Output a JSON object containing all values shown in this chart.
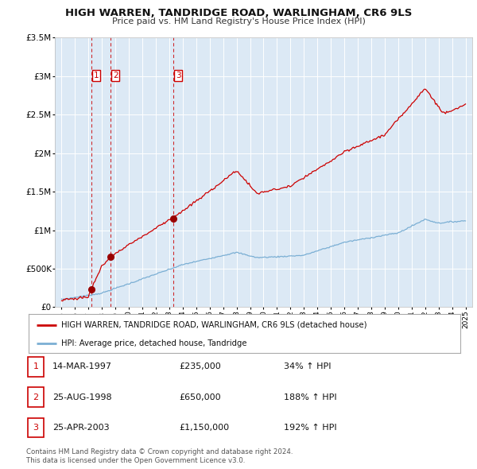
{
  "title": "HIGH WARREN, TANDRIDGE ROAD, WARLINGHAM, CR6 9LS",
  "subtitle": "Price paid vs. HM Land Registry's House Price Index (HPI)",
  "legend_line1": "HIGH WARREN, TANDRIDGE ROAD, WARLINGHAM, CR6 9LS (detached house)",
  "legend_line2": "HPI: Average price, detached house, Tandridge",
  "sale_line_color": "#cc0000",
  "hpi_line_color": "#7bafd4",
  "sale_dot_color": "#990000",
  "background_plot": "#dce9f5",
  "background_fig": "#ffffff",
  "grid_color": "#ffffff",
  "vline_color": "#cc0000",
  "ylim": [
    0,
    3500000
  ],
  "yticks": [
    0,
    500000,
    1000000,
    1500000,
    2000000,
    2500000,
    3000000,
    3500000
  ],
  "transactions": [
    {
      "num": 1,
      "date_str": "14-MAR-1997",
      "date_x": 1997.21,
      "price": 235000,
      "pct": "34%",
      "dir": "↑"
    },
    {
      "num": 2,
      "date_str": "25-AUG-1998",
      "date_x": 1998.65,
      "price": 650000,
      "pct": "188%",
      "dir": "↑"
    },
    {
      "num": 3,
      "date_str": "25-APR-2003",
      "date_x": 2003.32,
      "price": 1150000,
      "pct": "192%",
      "dir": "↑"
    }
  ],
  "footnote1": "Contains HM Land Registry data © Crown copyright and database right 2024.",
  "footnote2": "This data is licensed under the Open Government Licence v3.0.",
  "xlim_start": 1994.5,
  "xlim_end": 2025.5,
  "xticks": [
    1995,
    1996,
    1997,
    1998,
    1999,
    2000,
    2001,
    2002,
    2003,
    2004,
    2005,
    2006,
    2007,
    2008,
    2009,
    2010,
    2011,
    2012,
    2013,
    2014,
    2015,
    2016,
    2017,
    2018,
    2019,
    2020,
    2021,
    2022,
    2023,
    2024,
    2025
  ]
}
